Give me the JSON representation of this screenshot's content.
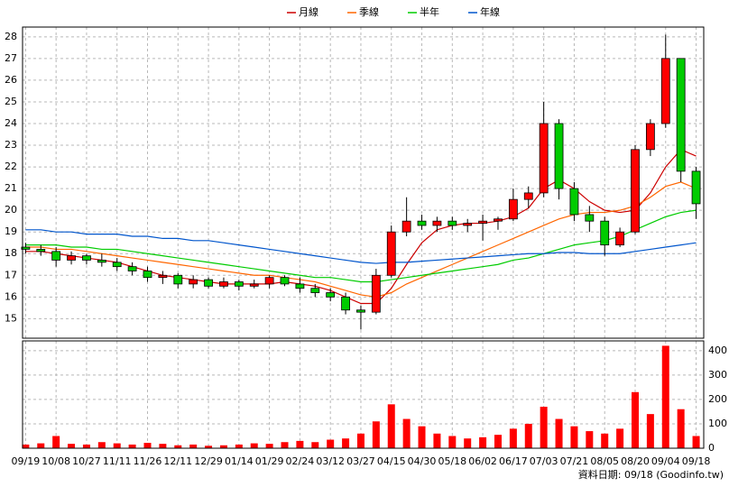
{
  "chart_data": [
    {
      "type": "candlestick",
      "legend": "top",
      "grid": true,
      "up_color": "#ff0000",
      "down_color": "#00cc00",
      "open": [
        18.3,
        18.2,
        18.1,
        17.7,
        17.9,
        17.7,
        17.6,
        17.4,
        17.2,
        16.9,
        17.0,
        16.6,
        16.8,
        16.5,
        16.7,
        16.5,
        16.6,
        16.9,
        16.6,
        16.4,
        16.2,
        16.0,
        15.4,
        15.3,
        17.0,
        19.0,
        19.5,
        19.3,
        19.5,
        19.3,
        19.4,
        19.5,
        19.6,
        20.5,
        20.8,
        24.0,
        21.0,
        19.8,
        19.5,
        18.4,
        19.0,
        22.8,
        24.0,
        27.0,
        21.8
      ],
      "high": [
        18.5,
        18.4,
        18.3,
        18.1,
        18.0,
        18.0,
        17.8,
        17.6,
        17.4,
        17.2,
        17.1,
        17.0,
        16.9,
        16.9,
        16.8,
        16.8,
        17.0,
        17.0,
        16.9,
        16.6,
        16.4,
        16.2,
        15.6,
        17.3,
        19.3,
        20.6,
        19.8,
        19.7,
        19.7,
        19.6,
        19.8,
        19.7,
        21.0,
        21.1,
        25.0,
        24.2,
        21.3,
        20.2,
        19.7,
        19.2,
        23.0,
        24.2,
        28.1,
        27.0,
        22.0
      ],
      "low": [
        18.0,
        17.9,
        17.4,
        17.5,
        17.5,
        17.4,
        17.2,
        17.0,
        16.7,
        16.6,
        16.4,
        16.4,
        16.4,
        16.4,
        16.3,
        16.4,
        16.4,
        16.5,
        16.2,
        16.0,
        15.8,
        15.2,
        14.5,
        15.2,
        16.9,
        18.8,
        19.1,
        19.0,
        19.1,
        19.0,
        18.6,
        19.1,
        19.5,
        20.1,
        20.6,
        20.5,
        19.5,
        19.0,
        17.9,
        18.3,
        18.9,
        22.5,
        23.8,
        21.3,
        19.6
      ],
      "close": [
        18.2,
        18.1,
        17.7,
        17.9,
        17.7,
        17.6,
        17.4,
        17.2,
        16.9,
        17.0,
        16.6,
        16.8,
        16.5,
        16.7,
        16.5,
        16.6,
        16.9,
        16.6,
        16.4,
        16.2,
        16.0,
        15.4,
        15.3,
        17.0,
        19.0,
        19.5,
        19.3,
        19.5,
        19.3,
        19.4,
        19.5,
        19.6,
        20.5,
        20.8,
        24.0,
        21.0,
        19.8,
        19.5,
        18.4,
        19.0,
        22.8,
        24.0,
        27.0,
        21.8,
        20.3
      ],
      "series": [
        {
          "name": "月線",
          "color": "#cc0000",
          "values": [
            18.1,
            18.1,
            18.0,
            17.9,
            17.8,
            17.7,
            17.6,
            17.4,
            17.2,
            17.0,
            16.9,
            16.8,
            16.7,
            16.6,
            16.6,
            16.6,
            16.6,
            16.7,
            16.6,
            16.5,
            16.3,
            16.0,
            15.7,
            15.7,
            16.4,
            17.5,
            18.5,
            19.1,
            19.3,
            19.4,
            19.4,
            19.5,
            19.7,
            20.1,
            21.0,
            21.4,
            21.0,
            20.4,
            20.0,
            19.9,
            20.0,
            20.8,
            22.0,
            22.8,
            22.5
          ]
        },
        {
          "name": "季線",
          "color": "#ff6600",
          "values": [
            18.3,
            18.3,
            18.2,
            18.2,
            18.1,
            18.0,
            17.9,
            17.8,
            17.7,
            17.6,
            17.5,
            17.4,
            17.3,
            17.2,
            17.1,
            17.0,
            17.0,
            16.9,
            16.8,
            16.7,
            16.5,
            16.3,
            16.1,
            16.0,
            16.2,
            16.6,
            16.9,
            17.2,
            17.5,
            17.8,
            18.1,
            18.4,
            18.7,
            19.0,
            19.3,
            19.6,
            19.8,
            19.9,
            19.9,
            20.0,
            20.2,
            20.6,
            21.1,
            21.3,
            21.0
          ]
        },
        {
          "name": "半年",
          "color": "#00cc00",
          "values": [
            18.4,
            18.4,
            18.4,
            18.3,
            18.3,
            18.2,
            18.2,
            18.1,
            18.0,
            17.9,
            17.8,
            17.7,
            17.6,
            17.5,
            17.4,
            17.3,
            17.2,
            17.1,
            17.0,
            16.9,
            16.9,
            16.8,
            16.7,
            16.7,
            16.8,
            16.9,
            17.0,
            17.1,
            17.2,
            17.3,
            17.4,
            17.5,
            17.7,
            17.8,
            18.0,
            18.2,
            18.4,
            18.5,
            18.6,
            18.8,
            19.1,
            19.4,
            19.7,
            19.9,
            20.0
          ]
        },
        {
          "name": "年線",
          "color": "#0055cc",
          "values": [
            19.1,
            19.1,
            19.0,
            19.0,
            18.9,
            18.9,
            18.9,
            18.8,
            18.8,
            18.7,
            18.7,
            18.6,
            18.6,
            18.5,
            18.4,
            18.3,
            18.2,
            18.1,
            18.0,
            17.9,
            17.8,
            17.7,
            17.6,
            17.55,
            17.6,
            17.6,
            17.65,
            17.7,
            17.75,
            17.8,
            17.85,
            17.9,
            17.95,
            18.0,
            18.0,
            18.05,
            18.05,
            18.0,
            18.0,
            18.0,
            18.1,
            18.2,
            18.3,
            18.4,
            18.5
          ]
        }
      ],
      "xlim": [
        -0.2,
        44.5
      ],
      "ylim": [
        14.1,
        28.45
      ],
      "yticks": [
        15,
        16,
        17,
        18,
        19,
        20,
        21,
        22,
        23,
        24,
        25,
        26,
        27,
        28
      ]
    },
    {
      "type": "bar",
      "grid": true,
      "color": "#ff0000",
      "values": [
        15,
        20,
        50,
        18,
        15,
        25,
        20,
        15,
        22,
        18,
        12,
        15,
        10,
        12,
        15,
        20,
        18,
        25,
        30,
        25,
        35,
        40,
        60,
        110,
        180,
        120,
        90,
        60,
        50,
        40,
        45,
        55,
        80,
        100,
        170,
        120,
        90,
        70,
        60,
        80,
        230,
        140,
        420,
        160,
        50
      ],
      "xlim": [
        -0.2,
        44.5
      ],
      "xticks": [
        {
          "value": 0,
          "label": "09/19"
        },
        {
          "value": 2,
          "label": "10/08"
        },
        {
          "value": 4,
          "label": "10/27"
        },
        {
          "value": 6,
          "label": "11/11"
        },
        {
          "value": 8,
          "label": "11/26"
        },
        {
          "value": 10,
          "label": "12/11"
        },
        {
          "value": 12,
          "label": "12/29"
        },
        {
          "value": 14,
          "label": "01/14"
        },
        {
          "value": 16,
          "label": "01/29"
        },
        {
          "value": 18,
          "label": "02/24"
        },
        {
          "value": 20,
          "label": "03/12"
        },
        {
          "value": 22,
          "label": "03/27"
        },
        {
          "value": 24,
          "label": "04/15"
        },
        {
          "value": 26,
          "label": "04/30"
        },
        {
          "value": 28,
          "label": "05/18"
        },
        {
          "value": 30,
          "label": "06/02"
        },
        {
          "value": 32,
          "label": "06/17"
        },
        {
          "value": 34,
          "label": "07/03"
        },
        {
          "value": 36,
          "label": "07/21"
        },
        {
          "value": 38,
          "label": "08/05"
        },
        {
          "value": 40,
          "label": "08/20"
        },
        {
          "value": 42,
          "label": "09/04"
        },
        {
          "value": 44,
          "label": "09/18"
        }
      ],
      "ylim": [
        0,
        440
      ],
      "yticks": [
        0,
        100,
        200,
        300,
        400
      ]
    }
  ],
  "footnote": "資料日期: 09/18 (Goodinfo.tw)"
}
